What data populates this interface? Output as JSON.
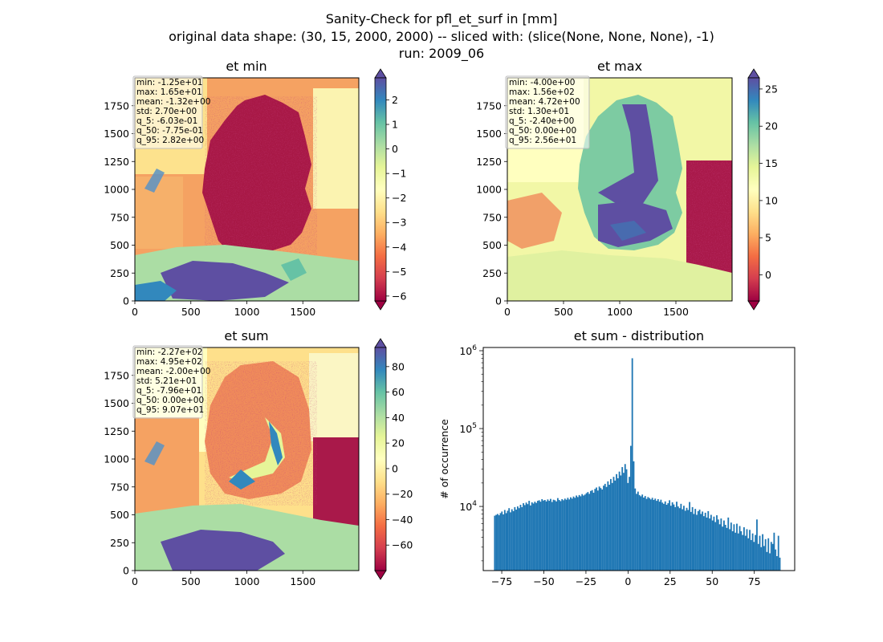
{
  "header": {
    "line1": "Sanity-Check for pfl_et_surf in [mm]",
    "line2": "original data shape: (30, 15, 2000, 2000) -- sliced with: (slice(None, None, None), -1)",
    "line3": "run: 2009_06"
  },
  "colors": {
    "histogram_bar": "#1f77b4",
    "colormap": "Spectral"
  },
  "chart_data": [
    {
      "type": "heatmap",
      "title": "et min",
      "xticks": [
        "0",
        "500",
        "1000",
        "1500"
      ],
      "yticks": [
        "0",
        "250",
        "500",
        "750",
        "1000",
        "1250",
        "1500",
        "1750"
      ],
      "xlim": [
        0,
        2000
      ],
      "ylim": [
        0,
        2000
      ],
      "colorbar": {
        "min": -6.2,
        "max": 2.9,
        "ticks": [
          "2",
          "1",
          "0",
          "−1",
          "−2",
          "−3",
          "−4",
          "−5",
          "−6"
        ],
        "extend": "both"
      },
      "stats": [
        "min: -1.25e+01",
        "max: 1.65e+01",
        "mean: -1.32e+00",
        "std: 2.70e+00",
        "q_5: -6.03e-01",
        "q_50: -7.75e-01",
        "q_95: 2.82e+00"
      ]
    },
    {
      "type": "heatmap",
      "title": "et max",
      "xticks": [
        "0",
        "500",
        "1000",
        "1500"
      ],
      "yticks": [
        "0",
        "250",
        "500",
        "750",
        "1000",
        "1250",
        "1500",
        "1750"
      ],
      "xlim": [
        0,
        2000
      ],
      "ylim": [
        0,
        2000
      ],
      "colorbar": {
        "min": -3.5,
        "max": 26.5,
        "ticks": [
          "25",
          "20",
          "15",
          "10",
          "5",
          "0"
        ],
        "extend": "both"
      },
      "stats": [
        "min: -4.00e+00",
        "max: 1.56e+02",
        "mean: 4.72e+00",
        "std: 1.30e+01",
        "q_5: -2.40e+00",
        "q_50: 0.00e+00",
        "q_95: 2.56e+01"
      ]
    },
    {
      "type": "heatmap",
      "title": "et sum",
      "xticks": [
        "0",
        "500",
        "1000",
        "1500"
      ],
      "yticks": [
        "0",
        "250",
        "500",
        "750",
        "1000",
        "1250",
        "1500",
        "1750"
      ],
      "xlim": [
        0,
        2000
      ],
      "ylim": [
        0,
        2000
      ],
      "colorbar": {
        "min": -80,
        "max": 95,
        "ticks": [
          "80",
          "60",
          "40",
          "20",
          "0",
          "−20",
          "−40",
          "−60"
        ],
        "extend": "both"
      },
      "stats": [
        "min: -2.27e+02",
        "max: 4.95e+02",
        "mean: -2.00e+00",
        "std: 5.21e+01",
        "q_5: -7.96e+01",
        "q_50: 0.00e+00",
        "q_95: 9.07e+01"
      ]
    },
    {
      "type": "bar",
      "title": "et sum - distribution",
      "ylabel": "# of occurrence",
      "yscale": "log",
      "xlim": [
        -86,
        99
      ],
      "ylim": [
        1500,
        1100000
      ],
      "xticks": [
        "−75",
        "−50",
        "−25",
        "0",
        "25",
        "50",
        "75"
      ],
      "yticks": [
        "10^4",
        "10^5",
        "10^6"
      ],
      "bins": {
        "start": -79.6,
        "width": 0.851
      },
      "counts": [
        7600,
        7800,
        8000,
        7700,
        8200,
        8600,
        7900,
        9000,
        8200,
        8800,
        9500,
        8400,
        9200,
        8700,
        9800,
        9100,
        10000,
        9500,
        10500,
        9800,
        11000,
        10400,
        11200,
        10700,
        11800,
        10300,
        11300,
        10900,
        11500,
        11100,
        11800,
        12000,
        11500,
        12400,
        11900,
        12100,
        11600,
        12300,
        11800,
        12500,
        11400,
        12200,
        12000,
        11600,
        12800,
        12100,
        11700,
        12400,
        12000,
        12600,
        12200,
        12900,
        12300,
        13100,
        12600,
        13400,
        12900,
        13800,
        13200,
        14000,
        13500,
        14400,
        13800,
        14200,
        14800,
        15300,
        14500,
        15800,
        16200,
        15000,
        16800,
        17500,
        16000,
        18000,
        17200,
        16500,
        18500,
        19500,
        17800,
        21000,
        19000,
        22500,
        20000,
        24000,
        21500,
        26000,
        23000,
        28000,
        25000,
        32000,
        27000,
        35000,
        30000,
        20000,
        24000,
        60000,
        800000,
        38000,
        17000,
        14500,
        15500,
        14000,
        13500,
        14200,
        13000,
        13600,
        12500,
        13200,
        12800,
        12300,
        12900,
        12100,
        12600,
        11800,
        12400,
        11500,
        12200,
        11200,
        10800,
        11600,
        10500,
        11000,
        12000,
        10200,
        11300,
        10600,
        9800,
        11500,
        10000,
        9500,
        10800,
        9200,
        10200,
        8800,
        9600,
        9000,
        11400,
        8500,
        9800,
        8000,
        9300,
        7800,
        8700,
        9100,
        8000,
        8600,
        7500,
        8300,
        7200,
        8700,
        7000,
        7800,
        6600,
        7400,
        6300,
        7700,
        6800,
        5900,
        7000,
        5500,
        6600,
        5800,
        5300,
        7200,
        5100,
        6200,
        4800,
        5900,
        4600,
        6000,
        4500,
        5600,
        4800,
        4300,
        5400,
        4200,
        5100,
        3900,
        5000,
        3700,
        4500,
        3500,
        4300,
        6800,
        3300,
        4200,
        3000,
        4400,
        3100,
        3800,
        2600,
        3900,
        2500,
        3500,
        3300,
        4600,
        2800,
        2300,
        4200,
        2200
      ]
    }
  ]
}
